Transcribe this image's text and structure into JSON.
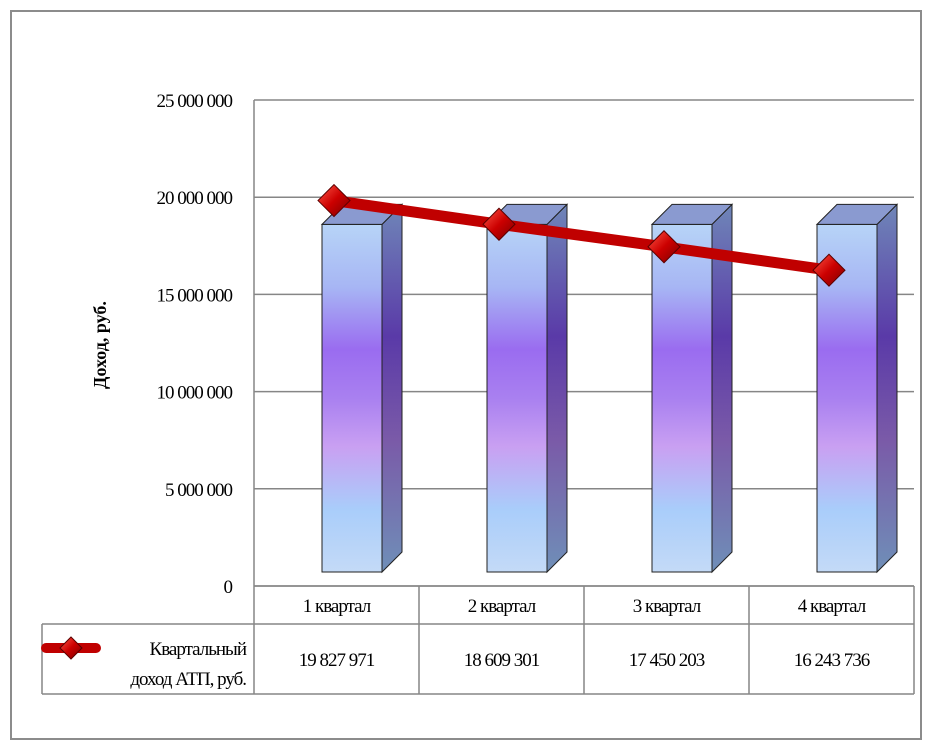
{
  "chart_data": {
    "type": "bar",
    "title": "",
    "xlabel": "",
    "ylabel": "Доход, руб.",
    "ylim": [
      0,
      25000000
    ],
    "yticks": [
      0,
      5000000,
      10000000,
      15000000,
      20000000,
      25000000
    ],
    "ytick_labels": [
      "0",
      "5 000 000",
      "10 000 000",
      "15 000 000",
      "20 000 000",
      "25 000 000"
    ],
    "categories": [
      "1 квартал",
      "2 квартал",
      "3 квартал",
      "4 квартал"
    ],
    "bar_values": [
      18600000,
      18600000,
      18600000,
      18600000
    ],
    "series": [
      {
        "name": "Квартальный доход АТП, руб.",
        "type": "line",
        "values": [
          19827971,
          18609301,
          17450203,
          16243736
        ],
        "value_labels": [
          "19 827 971",
          "18 609 301",
          "17 450 203",
          "16 243 736"
        ]
      }
    ],
    "legend_lines": [
      "Квартальный",
      "доход АТП, руб."
    ],
    "grid": true,
    "legend": "data-table-bottom",
    "colors": {
      "line": "#c00000",
      "marker": "#cc0000",
      "grid": "#868686",
      "bar_top": "#a6c4f2",
      "bar_mid": "#9a6cf0",
      "bar_bottom": "#a8cdfa"
    }
  }
}
